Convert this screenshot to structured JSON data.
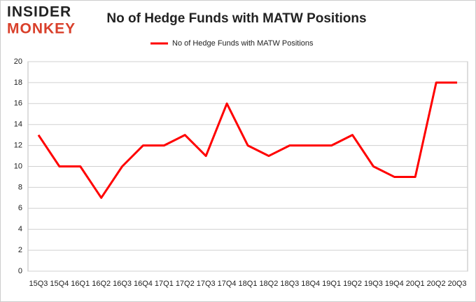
{
  "logo": {
    "line1": "INSIDER",
    "line2": "MONKEY"
  },
  "chart_data": {
    "type": "line",
    "title": "No of Hedge Funds with MATW Positions",
    "categories": [
      "15Q3",
      "15Q4",
      "16Q1",
      "16Q2",
      "16Q3",
      "16Q4",
      "17Q1",
      "17Q2",
      "17Q3",
      "17Q4",
      "18Q1",
      "18Q2",
      "18Q3",
      "18Q4",
      "19Q1",
      "19Q2",
      "19Q3",
      "19Q4",
      "20Q1",
      "20Q2",
      "20Q3"
    ],
    "series": [
      {
        "name": "No of Hedge Funds with MATW Positions",
        "color": "#ff0000",
        "values": [
          13,
          10,
          10,
          7,
          10,
          12,
          12,
          13,
          11,
          16,
          12,
          11,
          12,
          12,
          12,
          13,
          10,
          9,
          9,
          18,
          18
        ]
      }
    ],
    "ylim": [
      0,
      20
    ],
    "yticks": [
      0,
      2,
      4,
      6,
      8,
      10,
      12,
      14,
      16,
      18,
      20
    ],
    "grid": true,
    "legend": "top"
  }
}
